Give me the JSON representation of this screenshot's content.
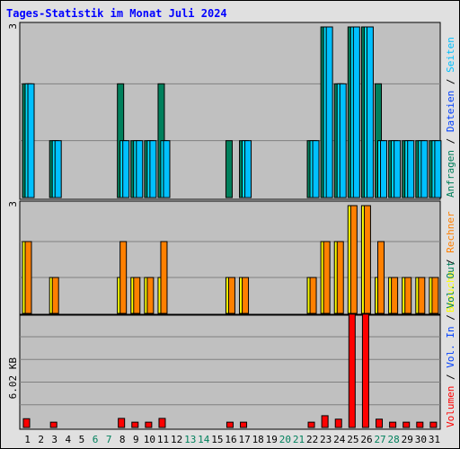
{
  "title": "Tages-Statistik im Monat Juli 2024",
  "colors": {
    "background": "#c0c0c0",
    "frame": "#e0e0e0",
    "title": "#0000ff",
    "grid": "#808080",
    "anfragen": "#00805c",
    "dateien": "#00e0ff",
    "seiten": "#00c0ff",
    "besuche": "#ffff00",
    "rechner": "#ff8000",
    "volumen": "#ff0000",
    "weekday_label": "#000000",
    "weekend_label": "#00805c"
  },
  "chart_data": [
    {
      "type": "bar",
      "title": "Tages-Statistik im Monat Juli 2024",
      "categories": [
        "1",
        "2",
        "3",
        "4",
        "5",
        "6",
        "7",
        "8",
        "9",
        "10",
        "11",
        "12",
        "13",
        "14",
        "15",
        "16",
        "17",
        "18",
        "19",
        "20",
        "21",
        "22",
        "23",
        "24",
        "25",
        "26",
        "27",
        "28",
        "29",
        "30",
        "31"
      ],
      "weekend_days": [
        "6",
        "7",
        "13",
        "14",
        "20",
        "21",
        "27",
        "28"
      ],
      "ylim": [
        0,
        3
      ],
      "tick_labels": [
        "3"
      ],
      "legend": [
        "Anfragen",
        "Dateien",
        "Seiten"
      ],
      "legend_placement": "right",
      "series": [
        {
          "name": "Anfragen",
          "values": [
            2,
            0,
            1,
            0,
            0,
            0,
            0,
            2,
            1,
            1,
            2,
            0,
            0,
            0,
            0,
            1,
            1,
            0,
            0,
            0,
            0,
            1,
            3,
            2,
            3,
            3,
            2,
            1,
            1,
            1,
            1
          ]
        },
        {
          "name": "Dateien",
          "values": [
            2,
            0,
            1,
            0,
            0,
            0,
            0,
            1,
            1,
            1,
            1,
            0,
            0,
            0,
            0,
            0,
            1,
            0,
            0,
            0,
            0,
            1,
            3,
            2,
            3,
            3,
            1,
            1,
            1,
            1,
            1
          ]
        },
        {
          "name": "Seiten",
          "values": [
            2,
            0,
            1,
            0,
            0,
            0,
            0,
            1,
            1,
            1,
            1,
            0,
            0,
            0,
            0,
            0,
            1,
            0,
            0,
            0,
            0,
            1,
            3,
            2,
            3,
            3,
            1,
            1,
            1,
            1,
            1
          ]
        }
      ]
    },
    {
      "type": "bar",
      "categories": [
        "1",
        "2",
        "3",
        "4",
        "5",
        "6",
        "7",
        "8",
        "9",
        "10",
        "11",
        "12",
        "13",
        "14",
        "15",
        "16",
        "17",
        "18",
        "19",
        "20",
        "21",
        "22",
        "23",
        "24",
        "25",
        "26",
        "27",
        "28",
        "29",
        "30",
        "31"
      ],
      "ylim": [
        0,
        3
      ],
      "tick_labels": [
        "3"
      ],
      "legend": [
        "Besuche",
        "Rechner"
      ],
      "legend_placement": "right",
      "series": [
        {
          "name": "Besuche",
          "values": [
            2,
            0,
            1,
            0,
            0,
            0,
            0,
            1,
            1,
            1,
            1,
            0,
            0,
            0,
            0,
            1,
            1,
            0,
            0,
            0,
            0,
            1,
            2,
            2,
            3,
            3,
            1,
            1,
            1,
            1,
            1
          ]
        },
        {
          "name": "Rechner",
          "values": [
            2,
            0,
            1,
            0,
            0,
            0,
            0,
            2,
            1,
            1,
            2,
            0,
            0,
            0,
            0,
            1,
            1,
            0,
            0,
            0,
            0,
            1,
            2,
            2,
            3,
            3,
            2,
            1,
            1,
            1,
            1
          ]
        }
      ]
    },
    {
      "type": "bar",
      "categories": [
        "1",
        "2",
        "3",
        "4",
        "5",
        "6",
        "7",
        "8",
        "9",
        "10",
        "11",
        "12",
        "13",
        "14",
        "15",
        "16",
        "17",
        "18",
        "19",
        "20",
        "21",
        "22",
        "23",
        "24",
        "25",
        "26",
        "27",
        "28",
        "29",
        "30",
        "31"
      ],
      "ylabel_unit": "KB",
      "tick_labels": [
        "6.02 KB"
      ],
      "tick_value": 6.02,
      "ylim": [
        0,
        7.52
      ],
      "legend": [
        "Volumen",
        "Vol. In",
        "Vol. Out"
      ],
      "legend_placement": "right",
      "series": [
        {
          "name": "Volumen",
          "values": [
            0.58,
            0,
            0.35,
            0,
            0,
            0,
            0,
            0.6,
            0.35,
            0.35,
            0.6,
            0,
            0,
            0,
            0,
            0.35,
            0.35,
            0,
            0,
            0,
            0,
            0.35,
            0.78,
            0.55,
            7.52,
            7.52,
            0.55,
            0.35,
            0.35,
            0.35,
            0.35
          ]
        }
      ]
    }
  ],
  "legend_text": {
    "top": [
      {
        "label": "Anfragen",
        "color": "#00805c"
      },
      {
        "sep": " / "
      },
      {
        "label": "Dateien",
        "color": "#0040ff"
      },
      {
        "sep": " / "
      },
      {
        "label": "Seiten",
        "color": "#00c0ff"
      }
    ],
    "middle": [
      {
        "label": "Besuche",
        "color": "#ffff00"
      },
      {
        "sep": " / "
      },
      {
        "label": "Rechner",
        "color": "#ff8000"
      }
    ],
    "bottom": [
      {
        "label": "Volumen",
        "color": "#ff0000"
      },
      {
        "sep": " / "
      },
      {
        "label": "Vol. In",
        "color": "#0040ff"
      },
      {
        "sep": " / "
      },
      {
        "label": "Vol. Out",
        "color": "#00805c"
      }
    ]
  }
}
